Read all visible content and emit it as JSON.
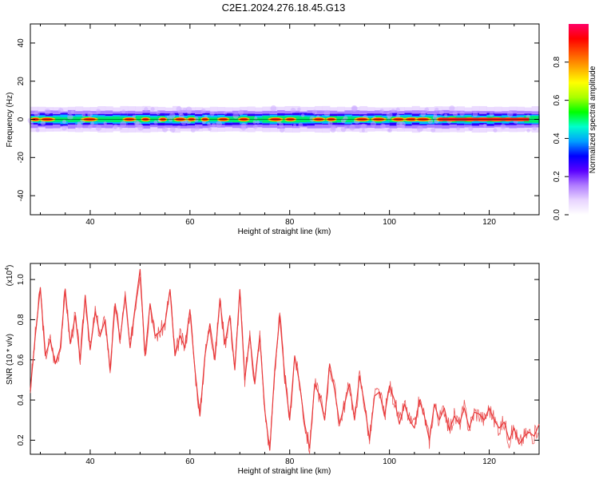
{
  "title": "C2E1.2024.276.18.45.G13",
  "chart_data": [
    {
      "type": "heatmap",
      "xlabel": "Height of straight line (km)",
      "ylabel": "Frequency (Hz)",
      "xlim": [
        28,
        130
      ],
      "ylim": [
        -50,
        50
      ],
      "xticks": [
        40,
        60,
        80,
        100,
        120
      ],
      "yticks": [
        -40,
        -20,
        0,
        20,
        40
      ],
      "band": {
        "center_hz": 0,
        "half_width_hz": 3,
        "note_peak_regions_km": [
          [
            30,
            32
          ],
          [
            49,
            53
          ],
          [
            66,
            70
          ],
          [
            110,
            128
          ]
        ]
      },
      "colorbar": {
        "label": "Normalized spectral amplitude",
        "ticks": [
          0.0,
          0.2,
          0.4,
          0.6,
          0.8
        ],
        "range": [
          0,
          1
        ],
        "colors": [
          "#ffffff",
          "#e8d4ff",
          "#b07cff",
          "#5a00ff",
          "#0000ff",
          "#00a0ff",
          "#00ffcc",
          "#00ff00",
          "#aaff00",
          "#ffff00",
          "#ffaa00",
          "#ff5500",
          "#ff0000",
          "#ff0066"
        ]
      }
    },
    {
      "type": "line",
      "xlabel": "Height of straight line (km)",
      "ylabel": "SNR (10 * v/v)",
      "yscale_label": "(x10",
      "yscale_exp": "4",
      "xlim": [
        28,
        130
      ],
      "ylim": [
        0.13,
        1.08
      ],
      "xticks": [
        40,
        60,
        80,
        100,
        120
      ],
      "yticks": [
        0.2,
        0.4,
        0.6,
        0.8,
        1.0
      ],
      "color": "#e8393b",
      "x": [
        28,
        29,
        30,
        31,
        32,
        33,
        34,
        35,
        36,
        37,
        38,
        39,
        40,
        41,
        42,
        43,
        44,
        45,
        46,
        47,
        48,
        49,
        50,
        51,
        52,
        53,
        54,
        55,
        56,
        57,
        58,
        59,
        60,
        61,
        62,
        63,
        64,
        65,
        66,
        67,
        68,
        69,
        70,
        71,
        72,
        73,
        74,
        75,
        76,
        77,
        78,
        79,
        80,
        81,
        82,
        83,
        84,
        85,
        86,
        87,
        88,
        89,
        90,
        91,
        92,
        93,
        94,
        95,
        96,
        97,
        98,
        99,
        100,
        101,
        102,
        103,
        104,
        105,
        106,
        107,
        108,
        109,
        110,
        111,
        112,
        113,
        114,
        115,
        116,
        117,
        118,
        119,
        120,
        121,
        122,
        123,
        124,
        125,
        126,
        127,
        128,
        129,
        130
      ],
      "values": [
        0.45,
        0.72,
        0.96,
        0.62,
        0.7,
        0.58,
        0.66,
        0.95,
        0.68,
        0.82,
        0.6,
        0.92,
        0.65,
        0.84,
        0.72,
        0.8,
        0.55,
        0.88,
        0.7,
        0.92,
        0.66,
        0.86,
        1.05,
        0.62,
        0.88,
        0.72,
        0.74,
        0.78,
        0.95,
        0.62,
        0.72,
        0.66,
        0.85,
        0.55,
        0.32,
        0.62,
        0.78,
        0.6,
        0.9,
        0.68,
        0.82,
        0.55,
        0.95,
        0.5,
        0.72,
        0.48,
        0.72,
        0.35,
        0.15,
        0.55,
        0.82,
        0.52,
        0.3,
        0.62,
        0.48,
        0.28,
        0.16,
        0.48,
        0.42,
        0.3,
        0.58,
        0.45,
        0.28,
        0.38,
        0.48,
        0.3,
        0.52,
        0.38,
        0.2,
        0.42,
        0.44,
        0.32,
        0.47,
        0.4,
        0.28,
        0.38,
        0.3,
        0.26,
        0.4,
        0.32,
        0.2,
        0.38,
        0.3,
        0.36,
        0.25,
        0.32,
        0.28,
        0.36,
        0.26,
        0.34,
        0.33,
        0.3,
        0.36,
        0.3,
        0.26,
        0.29,
        0.2,
        0.26,
        0.18,
        0.22,
        0.24,
        0.22,
        0.28
      ]
    }
  ]
}
